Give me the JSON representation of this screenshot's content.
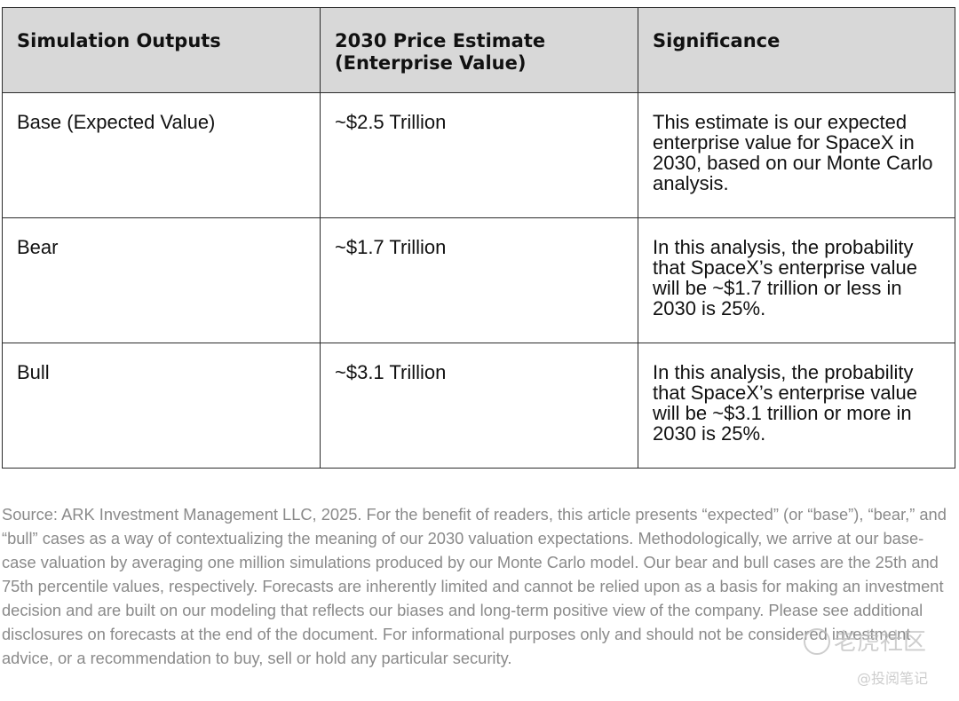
{
  "table": {
    "headers": [
      "Simulation Outputs",
      "2030 Price Estimate\n(Enterprise Value)",
      "Significance"
    ],
    "rows": [
      {
        "case": "Base (Expected Value)",
        "estimate": "~$2.5 Trillion",
        "significance": "This estimate is our expected enterprise value for SpaceX in 2030, based on our Monte Carlo analysis."
      },
      {
        "case": "Bear",
        "estimate": "~$1.7 Trillion",
        "significance": "In this analysis, the probability that SpaceX’s enterprise value will be ~$1.7 trillion or less in 2030 is 25%."
      },
      {
        "case": "Bull",
        "estimate": "~$3.1 Trillion",
        "significance": "In this analysis, the probability that SpaceX’s enterprise value will be ~$3.1 trillion or more in 2030 is 25%."
      }
    ]
  },
  "footnote": "Source: ARK Investment Management LLC, 2025. For the benefit of readers, this article presents “expected” (or “base”), “bear,” and “bull” cases as a way of contextualizing the meaning of our 2030 valuation expectations. Methodologically, we arrive at our base-case valuation by averaging one million simulations produced by our Monte Carlo model. Our bear and bull cases are the 25th and 75th percentile values, respectively. Forecasts are inherently limited and cannot be relied upon as a basis for making an investment decision and are built on our modeling that reflects our biases and long-term positive view of the company. Please see additional disclosures on forecasts at the end of the document. For informational purposes only and should not be considered investment advice, or a recommendation to buy, sell or hold any particular security.",
  "watermark": {
    "brand": "老虎社区",
    "handle": "@投阅笔记"
  }
}
